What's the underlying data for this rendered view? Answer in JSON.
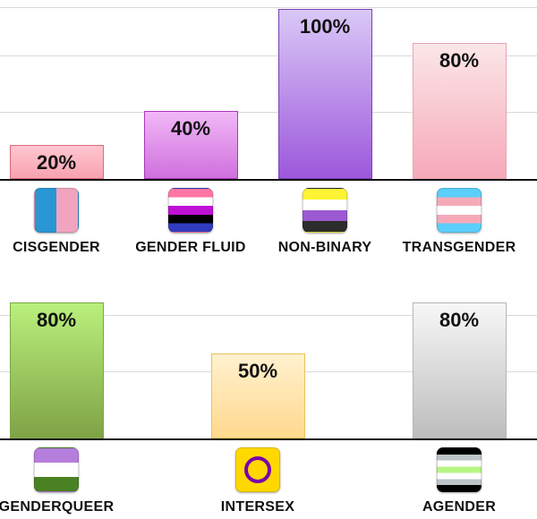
{
  "chart_data": [
    {
      "type": "bar",
      "categories": [
        "CISGENDER",
        "GENDER FLUID",
        "NON-BINARY",
        "TRANSGENDER"
      ],
      "values": [
        20,
        40,
        100,
        80
      ],
      "value_labels": [
        "20%",
        "40%",
        "100%",
        "80%"
      ],
      "ylim": [
        0,
        100
      ],
      "grid": true,
      "bar_colors": [
        [
          "#ffc6cf",
          "#f7a3b0",
          "#d86b7f"
        ],
        [
          "#f1b8f7",
          "#cf70dd",
          "#a83ab9"
        ],
        [
          "#d9c8f6",
          "#9d58dc",
          "#7a3fb8"
        ],
        [
          "#fbe6e8",
          "#f6a9b8",
          "#e9a4b1"
        ]
      ],
      "icons": [
        "cisgender-flag-icon",
        "genderfluid-flag-icon",
        "nonbinary-flag-icon",
        "transgender-flag-icon"
      ]
    },
    {
      "type": "bar",
      "categories": [
        "GENDERQUEER",
        "INTERSEX",
        "AGENDER"
      ],
      "values": [
        80,
        50,
        80
      ],
      "value_labels": [
        "80%",
        "50%",
        "80%"
      ],
      "ylim": [
        0,
        100
      ],
      "grid": true,
      "bar_colors": [
        [
          "#b9f07c",
          "#7fa245",
          "#7aa64a"
        ],
        [
          "#fff1cf",
          "#ffd98e",
          "#e8c45a"
        ],
        [
          "#f7f7f7",
          "#bdbdbd",
          "#b5b5b5"
        ]
      ],
      "icons": [
        "genderqueer-flag-icon",
        "intersex-flag-icon",
        "agender-flag-icon"
      ]
    }
  ],
  "flag_colors": {
    "cisgender": [
      "#2a96d4",
      "#f0a4c0"
    ],
    "genderfluid": [
      "#ff76a4",
      "#ffffff",
      "#c011d7",
      "#000000",
      "#2f3cbe"
    ],
    "nonbinary": [
      "#fcf434",
      "#ffffff",
      "#9c59d1",
      "#2c2c2c"
    ],
    "transgender": [
      "#5bcefa",
      "#f5a9b8",
      "#ffffff",
      "#f5a9b8",
      "#5bcefa"
    ],
    "genderqueer": [
      "#b57edc",
      "#ffffff",
      "#4a8123"
    ],
    "intersex": [
      "#ffd800",
      "#7902aa"
    ],
    "agender": [
      "#000000",
      "#bcc4c7",
      "#ffffff",
      "#b7f684",
      "#ffffff",
      "#bcc4c7",
      "#000000"
    ]
  }
}
